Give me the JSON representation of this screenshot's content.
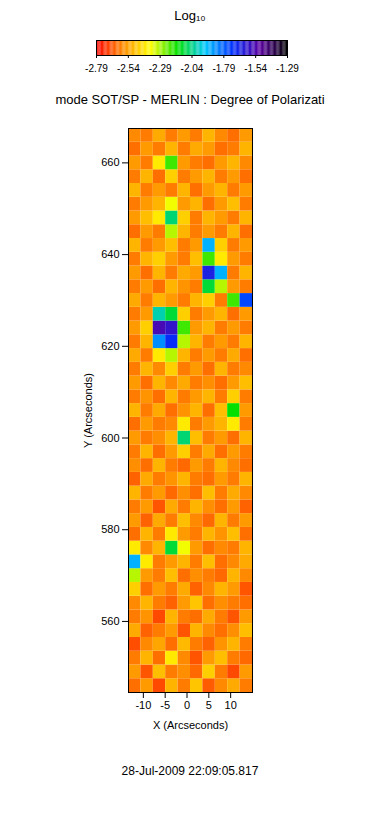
{
  "chart_data": {
    "type": "heatmap",
    "title": "mode SOT/SP - MERLIN : Degree of Polarizati",
    "caption": "28-Jul-2009 22:09:05.817",
    "x_label": "X (Arcseconds)",
    "y_label": "Y (Arcseconds)",
    "xlim": [
      -13.4,
      15.0
    ],
    "ylim": [
      544.5,
      667.5
    ],
    "xticks": [
      -10,
      -5,
      0,
      5,
      10
    ],
    "yticks": [
      560,
      580,
      600,
      620,
      640,
      660
    ],
    "colorbar": {
      "title": "Log₁₀",
      "range": [
        -2.79,
        -1.29
      ],
      "ticks": [
        -2.79,
        -2.54,
        -2.29,
        -2.04,
        -1.79,
        -1.54,
        -1.29
      ]
    },
    "x_edges": [
      -13.4,
      -10.56,
      -7.72,
      -4.88,
      -2.04,
      0.8,
      3.64,
      6.48,
      9.32,
      12.16,
      15.0
    ],
    "y_edges": [
      544.5,
      547.5,
      550.5,
      553.5,
      556.5,
      559.5,
      562.5,
      565.5,
      568.5,
      571.5,
      574.5,
      577.5,
      580.5,
      583.5,
      586.5,
      589.5,
      592.5,
      595.5,
      598.5,
      601.5,
      604.5,
      607.5,
      610.5,
      613.5,
      616.5,
      619.5,
      622.5,
      625.5,
      628.5,
      631.5,
      634.5,
      637.5,
      640.5,
      643.5,
      646.5,
      649.5,
      652.5,
      655.5,
      658.5,
      661.5,
      664.5,
      667.5
    ],
    "cells": [
      [
        -2.62,
        -2.55,
        -2.68,
        -2.5,
        -2.6,
        -2.47,
        -2.65,
        -2.58,
        -2.52,
        -2.6
      ],
      [
        -2.55,
        -2.66,
        -2.48,
        -2.6,
        -2.57,
        -2.63,
        -2.45,
        -2.6,
        -2.68,
        -2.55
      ],
      [
        -2.6,
        -2.5,
        -2.62,
        -2.4,
        -2.58,
        -2.66,
        -2.55,
        -2.48,
        -2.6,
        -2.63
      ],
      [
        -2.67,
        -2.58,
        -2.53,
        -2.62,
        -2.49,
        -2.6,
        -2.64,
        -2.56,
        -2.5,
        -2.6
      ],
      [
        -2.52,
        -2.64,
        -2.6,
        -2.55,
        -2.66,
        -2.5,
        -2.58,
        -2.62,
        -2.57,
        -2.48
      ],
      [
        -2.6,
        -2.56,
        -2.68,
        -2.5,
        -2.6,
        -2.62,
        -2.52,
        -2.6,
        -2.66,
        -2.55
      ],
      [
        -2.58,
        -2.5,
        -2.6,
        -2.64,
        -2.55,
        -2.47,
        -2.62,
        -2.57,
        -2.6,
        -2.62
      ],
      [
        -2.45,
        -2.62,
        -2.55,
        -2.6,
        -2.52,
        -2.64,
        -2.58,
        -2.5,
        -2.55,
        -2.66
      ],
      [
        -2.3,
        -2.55,
        -2.6,
        -2.48,
        -2.62,
        -2.57,
        -2.6,
        -2.63,
        -2.5,
        -2.58
      ],
      [
        -1.9,
        -2.4,
        -2.6,
        -2.55,
        -2.5,
        -2.6,
        -2.48,
        -2.62,
        -2.58,
        -2.52
      ],
      [
        -2.4,
        -2.58,
        -2.5,
        -2.1,
        -2.35,
        -2.55,
        -2.62,
        -2.58,
        -2.6,
        -2.5
      ],
      [
        -2.62,
        -2.5,
        -2.6,
        -2.4,
        -2.55,
        -2.6,
        -2.5,
        -2.56,
        -2.48,
        -2.62
      ],
      [
        -2.55,
        -2.64,
        -2.52,
        -2.6,
        -2.48,
        -2.58,
        -2.63,
        -2.5,
        -2.6,
        -2.55
      ],
      [
        -2.6,
        -2.55,
        -2.66,
        -2.52,
        -2.6,
        -2.5,
        -2.57,
        -2.62,
        -2.55,
        -2.64
      ],
      [
        -2.5,
        -2.6,
        -2.55,
        -2.63,
        -2.57,
        -2.62,
        -2.48,
        -2.6,
        -2.52,
        -2.58
      ],
      [
        -2.64,
        -2.52,
        -2.6,
        -2.56,
        -2.5,
        -2.6,
        -2.62,
        -2.55,
        -2.6,
        -2.5
      ],
      [
        -2.57,
        -2.62,
        -2.5,
        -2.6,
        -2.63,
        -2.55,
        -2.6,
        -2.5,
        -2.58,
        -2.62
      ],
      [
        -2.6,
        -2.5,
        -2.62,
        -2.55,
        -2.45,
        -2.6,
        -2.52,
        -2.62,
        -2.55,
        -2.6
      ],
      [
        -2.55,
        -2.6,
        -2.57,
        -2.5,
        -2.05,
        -2.48,
        -2.6,
        -2.55,
        -2.62,
        -2.5
      ],
      [
        -2.62,
        -2.55,
        -2.6,
        -2.58,
        -2.4,
        -2.6,
        -2.55,
        -2.5,
        -2.4,
        -2.6
      ],
      [
        -2.5,
        -2.6,
        -2.52,
        -2.62,
        -2.56,
        -2.5,
        -2.62,
        -2.48,
        -2.15,
        -2.55
      ],
      [
        -2.6,
        -2.56,
        -2.62,
        -2.5,
        -2.6,
        -2.55,
        -2.5,
        -2.6,
        -2.45,
        -2.6
      ],
      [
        -2.55,
        -2.62,
        -2.5,
        -2.58,
        -2.52,
        -2.6,
        -2.57,
        -2.62,
        -2.55,
        -2.48
      ],
      [
        -2.6,
        -2.5,
        -2.58,
        -2.45,
        -2.6,
        -2.55,
        -2.62,
        -2.5,
        -2.6,
        -2.58
      ],
      [
        -2.52,
        -2.6,
        -2.4,
        -2.3,
        -2.5,
        -2.6,
        -2.55,
        -2.6,
        -2.52,
        -2.62
      ],
      [
        -2.6,
        -2.5,
        -1.85,
        -1.7,
        -2.3,
        -2.5,
        -2.6,
        -2.55,
        -2.6,
        -2.5
      ],
      [
        -2.55,
        -2.45,
        -1.55,
        -1.6,
        -2.2,
        -2.55,
        -2.5,
        -2.6,
        -2.55,
        -2.6
      ],
      [
        -2.6,
        -2.55,
        -2.0,
        -2.1,
        -2.45,
        -2.6,
        -2.55,
        -2.5,
        -2.62,
        -2.55
      ],
      [
        -2.52,
        -2.6,
        -2.5,
        -2.55,
        -2.6,
        -2.5,
        -2.45,
        -2.6,
        -2.2,
        -1.75
      ],
      [
        -2.6,
        -2.55,
        -2.62,
        -2.5,
        -2.56,
        -2.6,
        -2.1,
        -2.3,
        -2.55,
        -2.6
      ],
      [
        -2.55,
        -2.62,
        -2.5,
        -2.6,
        -2.52,
        -2.55,
        -1.65,
        -1.9,
        -2.6,
        -2.5
      ],
      [
        -2.6,
        -2.5,
        -2.45,
        -2.55,
        -2.6,
        -2.48,
        -2.2,
        -2.4,
        -2.55,
        -2.6
      ],
      [
        -2.5,
        -2.6,
        -2.55,
        -2.48,
        -2.6,
        -2.55,
        -1.9,
        -2.45,
        -2.6,
        -2.55
      ],
      [
        -2.62,
        -2.55,
        -2.6,
        -2.3,
        -2.5,
        -2.6,
        -2.55,
        -2.6,
        -2.5,
        -2.62
      ],
      [
        -2.55,
        -2.48,
        -2.4,
        -2.05,
        -2.45,
        -2.6,
        -2.5,
        -2.55,
        -2.6,
        -2.5
      ],
      [
        -2.6,
        -2.55,
        -2.5,
        -2.35,
        -2.55,
        -2.5,
        -2.62,
        -2.55,
        -2.48,
        -2.6
      ],
      [
        -2.5,
        -2.6,
        -2.55,
        -2.6,
        -2.5,
        -2.62,
        -2.55,
        -2.5,
        -2.6,
        -2.55
      ],
      [
        -2.6,
        -2.5,
        -2.62,
        -2.45,
        -2.6,
        -2.55,
        -2.5,
        -2.6,
        -2.55,
        -2.62
      ],
      [
        -2.55,
        -2.6,
        -2.4,
        -2.2,
        -2.55,
        -2.6,
        -2.62,
        -2.55,
        -2.5,
        -2.58
      ],
      [
        -2.62,
        -2.55,
        -2.6,
        -2.5,
        -2.6,
        -2.52,
        -2.55,
        -2.62,
        -2.6,
        -2.5
      ],
      [
        -2.58,
        -2.6,
        -2.52,
        -2.6,
        -2.55,
        -2.6,
        -2.5,
        -2.58,
        -2.62,
        -2.55
      ]
    ]
  }
}
